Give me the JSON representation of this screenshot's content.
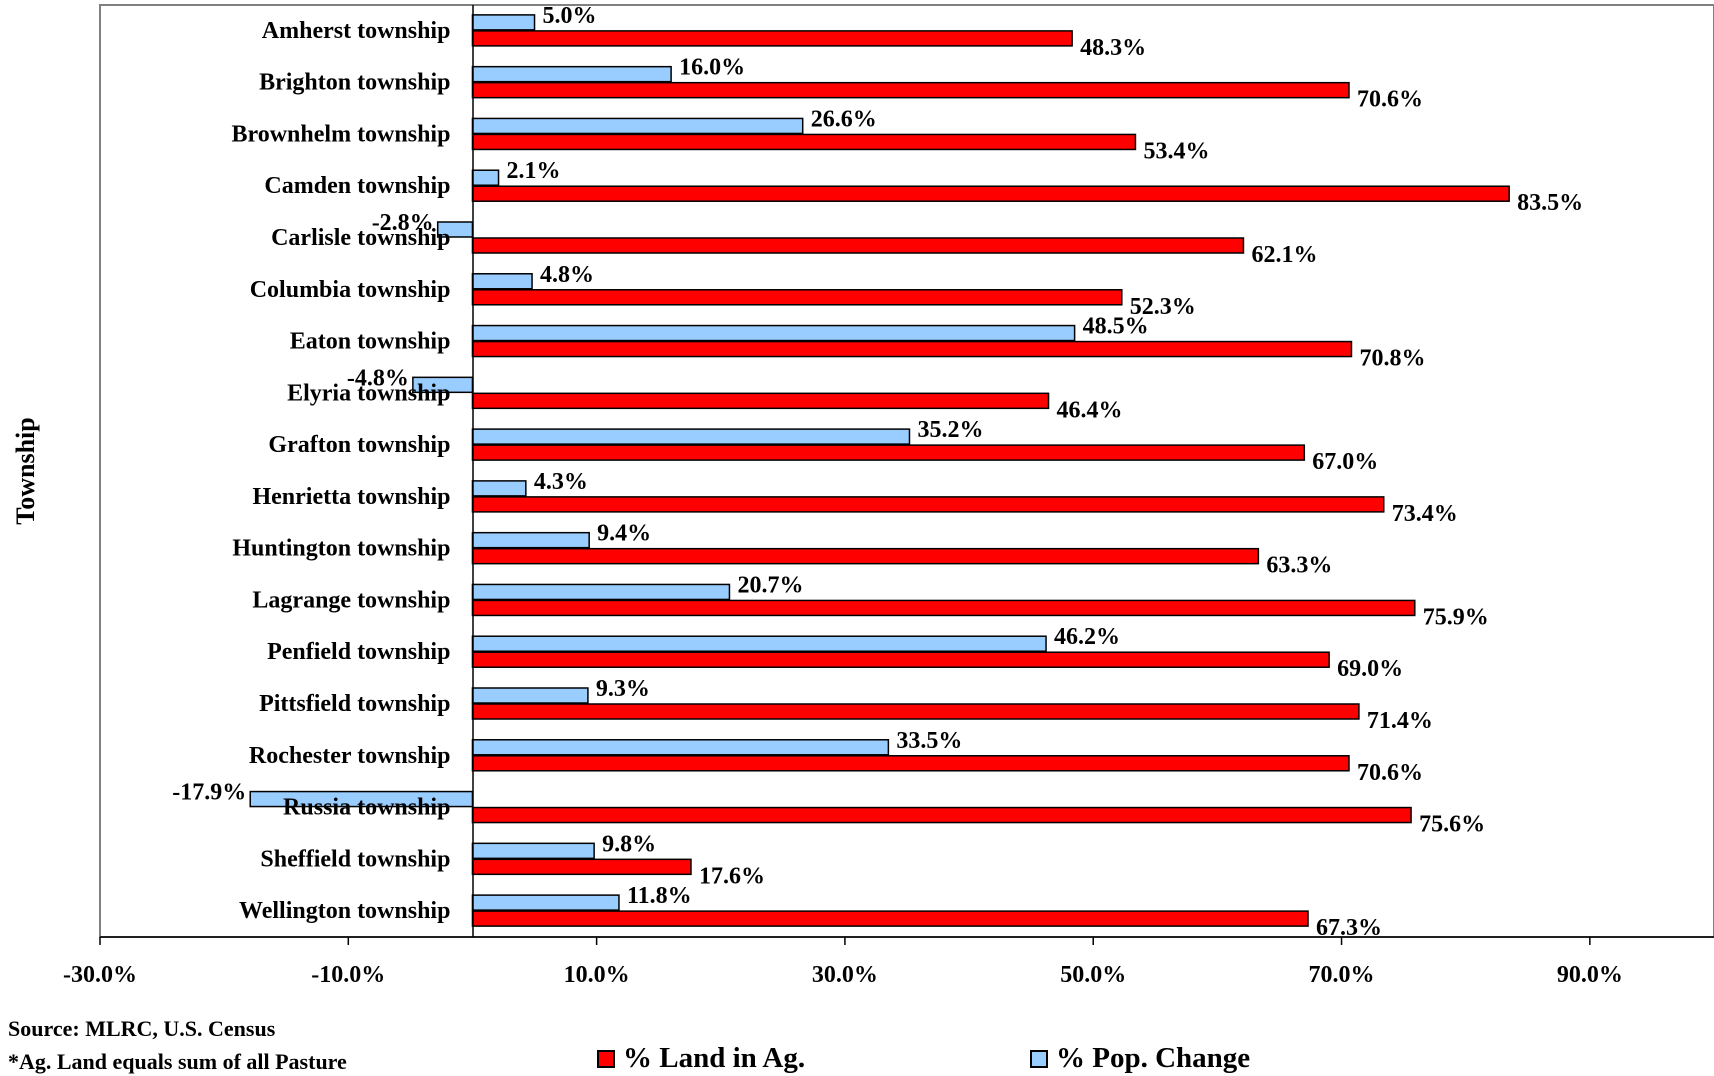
{
  "chart_data": {
    "type": "bar",
    "orientation": "horizontal",
    "ylabel": "Township",
    "categories": [
      "Amherst township",
      "Brighton township",
      "Brownhelm township",
      "Camden township",
      "Carlisle township",
      "Columbia township",
      "Eaton township",
      "Elyria township",
      "Grafton township",
      "Henrietta township",
      "Huntington township",
      "Lagrange township",
      "Penfield township",
      "Pittsfield township",
      "Rochester township",
      "Russia township",
      "Sheffield township",
      "Wellington township"
    ],
    "series": [
      {
        "name": "% Pop. Change",
        "color": "#99ccff",
        "values": [
          5.0,
          16.0,
          26.6,
          2.1,
          -2.8,
          4.8,
          48.5,
          -4.8,
          35.2,
          4.3,
          9.4,
          20.7,
          46.2,
          9.3,
          33.5,
          -17.9,
          9.8,
          11.8
        ],
        "labels": [
          "5.0%",
          "16.0%",
          "26.6%",
          "2.1%",
          "-2.8%",
          "4.8%",
          "48.5%",
          "-4.8%",
          "35.2%",
          "4.3%",
          "9.4%",
          "20.7%",
          "46.2%",
          "9.3%",
          "33.5%",
          "-17.9%",
          "9.8%",
          "11.8%"
        ]
      },
      {
        "name": "% Land in Ag.",
        "color": "#ff0000",
        "values": [
          48.3,
          70.6,
          53.4,
          83.5,
          62.1,
          52.3,
          70.8,
          46.4,
          67.0,
          73.4,
          63.3,
          75.9,
          69.0,
          71.4,
          70.6,
          75.6,
          17.6,
          67.3
        ],
        "labels": [
          "48.3%",
          "70.6%",
          "53.4%",
          "83.5%",
          "62.1%",
          "52.3%",
          "70.8%",
          "46.4%",
          "67.0%",
          "73.4%",
          "63.3%",
          "75.9%",
          "69.0%",
          "71.4%",
          "70.6%",
          "75.6%",
          "17.6%",
          "67.3%"
        ]
      }
    ],
    "xlim": [
      -30.0,
      100.0
    ],
    "xticks": [
      -30.0,
      -10.0,
      10.0,
      30.0,
      50.0,
      70.0,
      90.0
    ],
    "xtick_labels": [
      "-30.0%",
      "-10.0%",
      "10.0%",
      "30.0%",
      "50.0%",
      "70.0%",
      "90.0%"
    ],
    "grid": false,
    "legend_position": "bottom"
  },
  "legend": [
    {
      "label": "% Land in Ag.",
      "color": "#ff0000"
    },
    {
      "label": "% Pop. Change",
      "color": "#99ccff"
    }
  ],
  "notes": {
    "source": "Source: MLRC, U.S. Census",
    "footnote": "*Ag. Land equals sum of all Pasture"
  }
}
